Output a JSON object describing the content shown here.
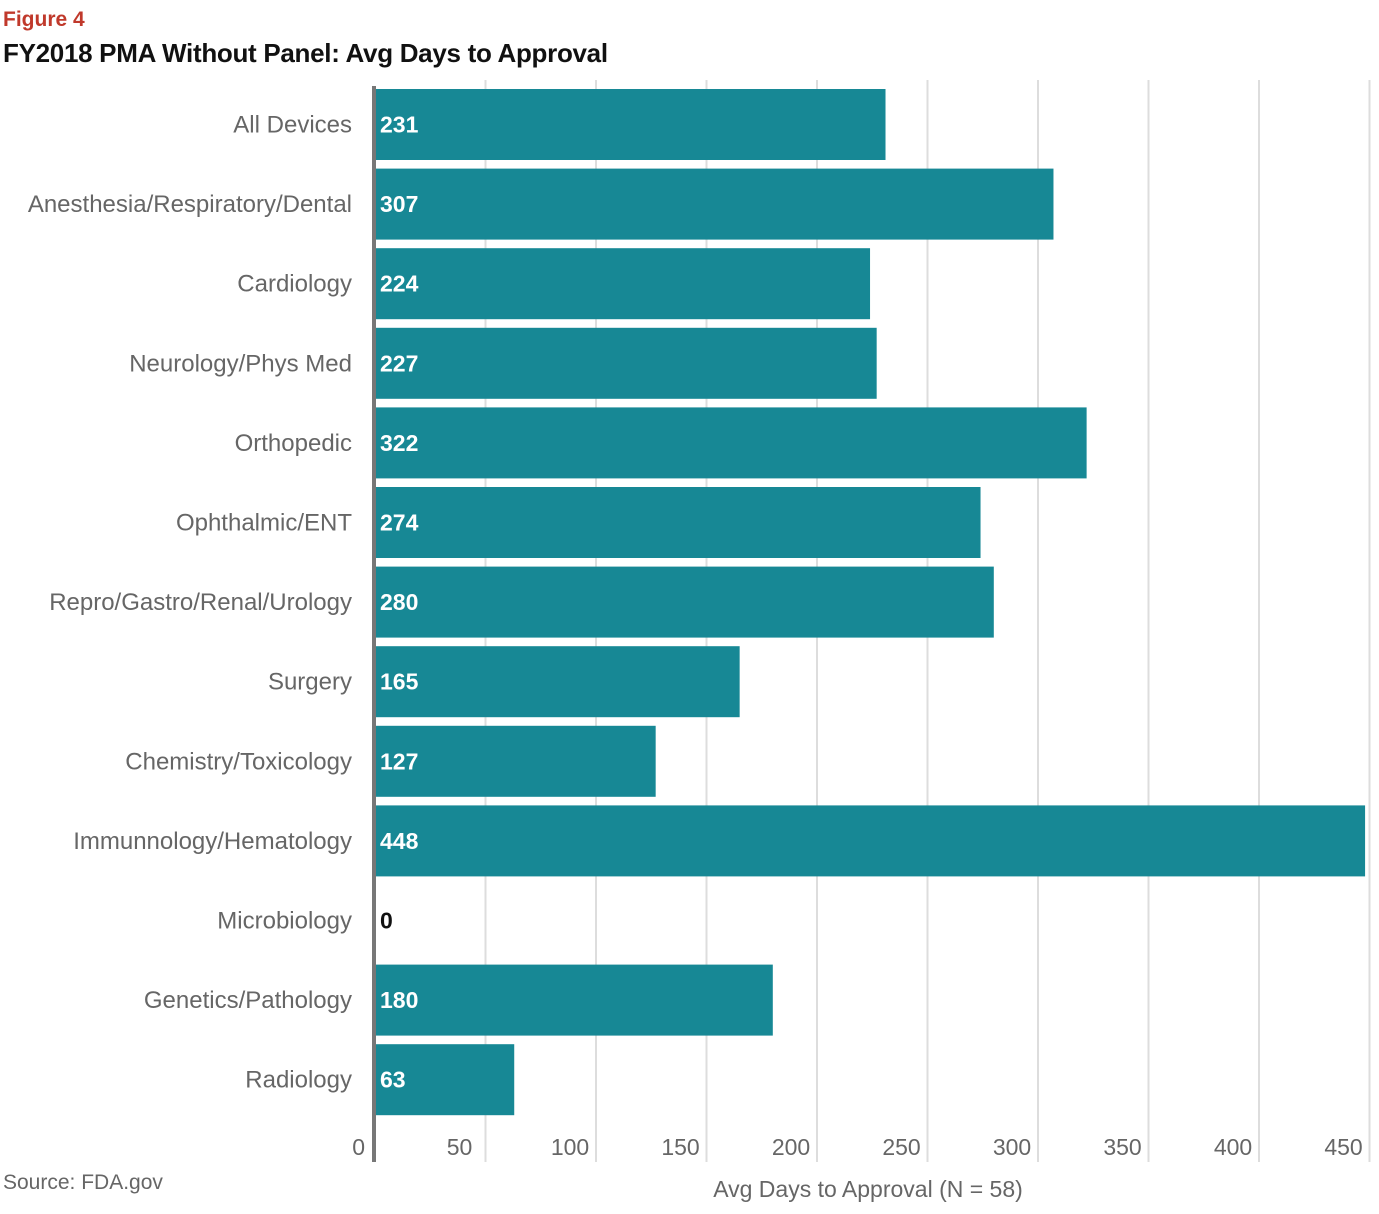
{
  "header": {
    "figure_label": "Figure 4",
    "title": "FY2018 PMA Without Panel: Avg Days to Approval"
  },
  "footer": {
    "source": "Source: FDA.gov"
  },
  "colors": {
    "bar": "#178895",
    "grid": "#dddddd",
    "axis": "#777777",
    "label_inside": "#ffffff",
    "label_zero": "#111111",
    "figure_label": "#c0392b"
  },
  "chart_data": {
    "type": "bar",
    "orientation": "horizontal",
    "categories": [
      "All Devices",
      "Anesthesia/Respiratory/Dental",
      "Cardiology",
      "Neurology/Phys Med",
      "Orthopedic",
      "Ophthalmic/ENT",
      "Repro/Gastro/Renal/Urology",
      "Surgery",
      "Chemistry/Toxicology",
      "Immunnology/Hematology",
      "Microbiology",
      "Genetics/Pathology",
      "Radiology"
    ],
    "values": [
      231,
      307,
      224,
      227,
      322,
      274,
      280,
      165,
      127,
      448,
      0,
      180,
      63
    ],
    "data_labels": [
      "231",
      "307",
      "224",
      "227",
      "322",
      "274",
      "280",
      "165",
      "127",
      "448",
      "0",
      "180",
      "63"
    ],
    "x_ticks": [
      "0",
      "50",
      "100",
      "150",
      "200",
      "250",
      "300",
      "350",
      "400",
      "450"
    ],
    "xlim": [
      0,
      450
    ],
    "xlabel": "Avg Days to Approval (N = 58)",
    "ylabel": "",
    "grid": "vertical",
    "legend": "none"
  }
}
